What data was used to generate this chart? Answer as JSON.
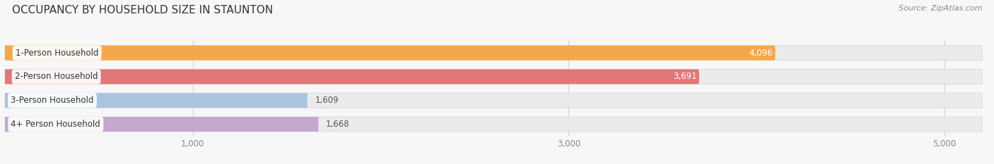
{
  "title": "OCCUPANCY BY HOUSEHOLD SIZE IN STAUNTON",
  "source": "Source: ZipAtlas.com",
  "categories": [
    "1-Person Household",
    "2-Person Household",
    "3-Person Household",
    "4+ Person Household"
  ],
  "values": [
    4096,
    3691,
    1609,
    1668
  ],
  "bar_colors": [
    "#F5A84B",
    "#E07878",
    "#A8C4E0",
    "#C4A8D0"
  ],
  "value_label_colors": [
    "white",
    "white",
    "#666666",
    "#666666"
  ],
  "value_label_inside": [
    true,
    true,
    false,
    false
  ],
  "xlim_start": 0,
  "xlim_end": 5200,
  "bar_max": 5200,
  "xticks": [
    1000,
    3000,
    5000
  ],
  "xtick_labels": [
    "1,000",
    "3,000",
    "5,000"
  ],
  "background_color": "#f7f7f7",
  "bar_bg_color": "#ebebeb",
  "title_fontsize": 11,
  "label_fontsize": 8.5,
  "value_fontsize": 8.5,
  "source_fontsize": 8,
  "bar_height": 0.62,
  "figsize": [
    14.06,
    2.33
  ],
  "dpi": 100
}
